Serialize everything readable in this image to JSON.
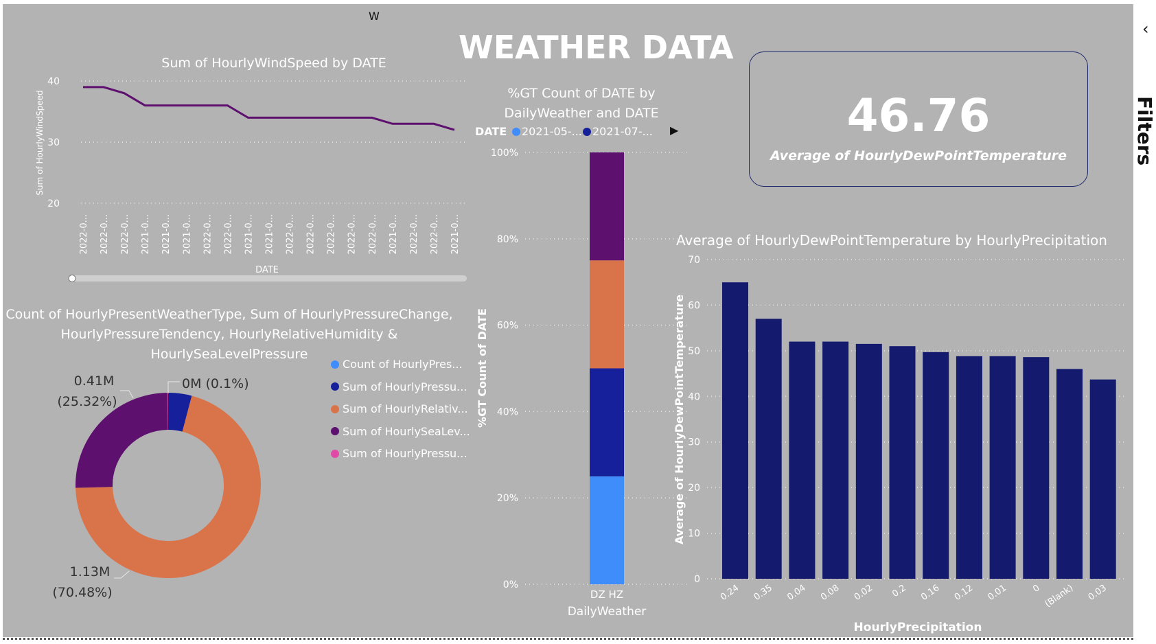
{
  "report": {
    "title": "WEATHER DATA",
    "top_letter": "W",
    "filters_label": "Filters",
    "filters_chevron": "‹"
  },
  "card": {
    "value": "46.76",
    "label": "Average of HourlyDewPointTemperature"
  },
  "colors": {
    "background": "#b3b3b3",
    "navy": "#141a6e",
    "purple": "#5e106f",
    "orange": "#d9744a",
    "blue": "#16209a",
    "lightblue": "#3f8cfb",
    "pink": "#e04aa6",
    "line": "#5e106f"
  },
  "chart_data": [
    {
      "id": "wind",
      "type": "line",
      "title": "Sum of HourlyWindSpeed by DATE",
      "xlabel": "DATE",
      "ylabel": "Sum of HourlyWindSpeed",
      "categories": [
        "2022-0...",
        "2022-0...",
        "2022-0...",
        "2021-0...",
        "2021-0...",
        "2021-0...",
        "2022-0...",
        "2022-0...",
        "2021-0...",
        "2021-0...",
        "2022-0...",
        "2022-0...",
        "2022-0...",
        "2022-0...",
        "2022-0...",
        "2021-0...",
        "2022-0...",
        "2022-0...",
        "2021-0..."
      ],
      "values": [
        39,
        39,
        38,
        36,
        36,
        36,
        36,
        36,
        34,
        34,
        34,
        34,
        34,
        34,
        34,
        33,
        33,
        33,
        32
      ],
      "yticks": [
        20,
        30,
        40
      ],
      "ylim": [
        20,
        40
      ],
      "grid": true
    },
    {
      "id": "pie",
      "type": "pie",
      "style": "donut",
      "title_lines": [
        "Count of HourlyPresentWeatherType, Sum of HourlyPressureChange,",
        "HourlyPressureTendency, HourlyRelativeHumidity &",
        "HourlySeaLevelPressure"
      ],
      "legend": [
        "Count of HourlyPres...",
        "Sum of HourlyPressu...",
        "Sum of HourlyRelativ...",
        "Sum of HourlySeaLev...",
        "Sum of HourlyPressu..."
      ],
      "legend_colors": [
        "#3f8cfb",
        "#16209a",
        "#d9744a",
        "#5e106f",
        "#e04aa6"
      ],
      "slices": [
        {
          "value": 0.0,
          "percent": 0.0,
          "color": "#3f8cfb"
        },
        {
          "value": 0.07,
          "percent": 4.1,
          "color": "#16209a"
        },
        {
          "value": 1.13,
          "percent": 70.48,
          "color": "#d9744a"
        },
        {
          "value": 0.41,
          "percent": 25.32,
          "color": "#5e106f"
        },
        {
          "value": 0.0,
          "percent": 0.1,
          "color": "#e04aa6"
        }
      ],
      "labels": [
        {
          "line1": "0.41M",
          "line2": "(25.32%)"
        },
        {
          "line1": "0M (0.1%)",
          "line2": ""
        },
        {
          "line1": "1.13M",
          "line2": "(70.48%)"
        }
      ]
    },
    {
      "id": "stacked",
      "type": "bar",
      "title_lines": [
        "%GT Count of DATE by",
        "DailyWeather and DATE"
      ],
      "legend_title": "DATE",
      "legend": [
        "2021-05-...",
        "2021-07-..."
      ],
      "legend_colors": [
        "#3f8cfb",
        "#16209a"
      ],
      "categories": [
        "DZ HZ"
      ],
      "xlabel": "DailyWeather",
      "ylabel": "%GT Count of DATE",
      "yticks": [
        "0%",
        "20%",
        "40%",
        "60%",
        "80%",
        "100%"
      ],
      "ylim": [
        0,
        100
      ],
      "series": [
        {
          "value": 25,
          "color": "#3f8cfb"
        },
        {
          "value": 25,
          "color": "#16209a"
        },
        {
          "value": 25,
          "color": "#d9744a"
        },
        {
          "value": 25,
          "color": "#5e106f"
        }
      ]
    },
    {
      "id": "dew",
      "type": "bar",
      "title": "Average of HourlyDewPointTemperature by HourlyPrecipitation",
      "xlabel": "HourlyPrecipitation",
      "ylabel": "Average of HourlyDewPointTemperature",
      "categories": [
        "0.24",
        "0.35",
        "0.04",
        "0.08",
        "0.02",
        "0.2",
        "0.16",
        "0.12",
        "0.01",
        "0",
        "(Blank)",
        "0.03"
      ],
      "values": [
        65,
        57,
        52,
        52,
        51.5,
        51,
        49.7,
        48.8,
        48.8,
        48.6,
        46,
        43.7
      ],
      "yticks": [
        0,
        10,
        20,
        30,
        40,
        50,
        60,
        70
      ],
      "ylim": [
        0,
        70
      ],
      "color": "#141a6e"
    }
  ]
}
